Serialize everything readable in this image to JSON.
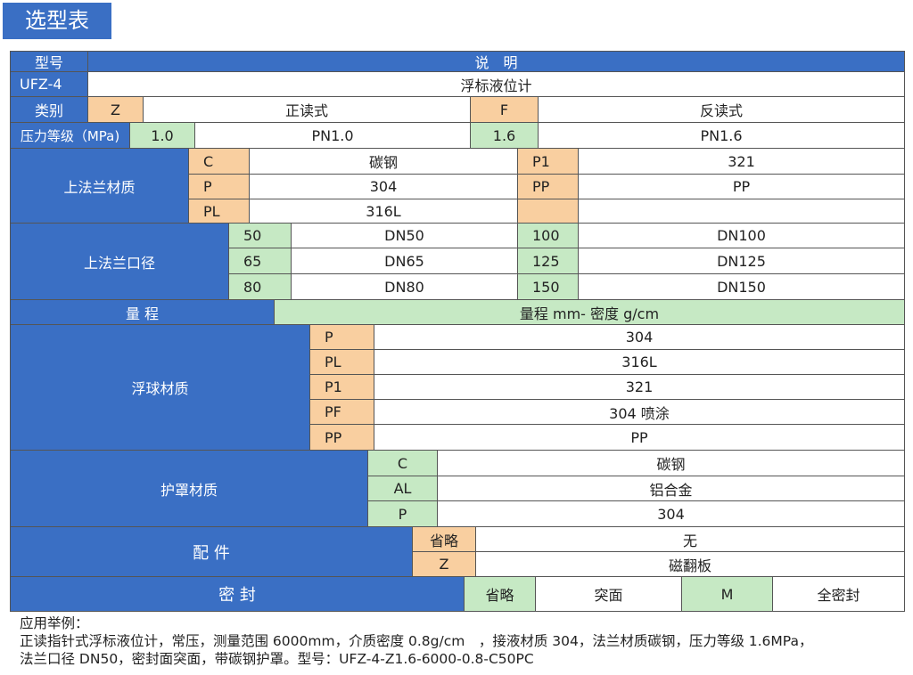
{
  "title": "选型表",
  "header": {
    "model": "型号",
    "desc": "说　明"
  },
  "model_row": {
    "code": "UFZ-4",
    "desc": "浮标液位计"
  },
  "type_row": {
    "label": "类别",
    "c1": "Z",
    "v1": "正读式",
    "c2": "F",
    "v2": "反读式"
  },
  "pressure_row": {
    "label": "压力等级（MPa)",
    "c1": "1.0",
    "v1": "PN1.0",
    "c2": "1.6",
    "v2": "PN1.6"
  },
  "flange_material": {
    "label": "上法兰材质",
    "rows": [
      {
        "c1": "C",
        "v1": "碳钢",
        "c2": "P1",
        "v2": "321"
      },
      {
        "c1": "P",
        "v1": "304",
        "c2": "PP",
        "v2": "PP"
      },
      {
        "c1": "PL",
        "v1": "316L",
        "c2": "",
        "v2": ""
      }
    ]
  },
  "flange_size": {
    "label": "上法兰口径",
    "rows": [
      {
        "c1": "50",
        "v1": "DN50",
        "c2": "100",
        "v2": "DN100"
      },
      {
        "c1": "65",
        "v1": "DN65",
        "c2": "125",
        "v2": "DN125"
      },
      {
        "c1": "80",
        "v1": "DN80",
        "c2": "150",
        "v2": "DN150"
      }
    ]
  },
  "range_row": {
    "label": "量 程",
    "value": "量程 mm- 密度 g/cm"
  },
  "float_material": {
    "label": "浮球材质",
    "rows": [
      {
        "c": "P",
        "v": "304"
      },
      {
        "c": "PL",
        "v": "316L"
      },
      {
        "c": "P1",
        "v": "321"
      },
      {
        "c": "PF",
        "v": "304 喷涂"
      },
      {
        "c": "PP",
        "v": "PP"
      }
    ]
  },
  "cover_material": {
    "label": "护罩材质",
    "rows": [
      {
        "c": "C",
        "v": "碳钢"
      },
      {
        "c": "AL",
        "v": "铝合金"
      },
      {
        "c": "P",
        "v": "304"
      }
    ]
  },
  "accessory": {
    "label": "配 件",
    "rows": [
      {
        "c": "省略",
        "v": "无"
      },
      {
        "c": "Z",
        "v": "磁翻板"
      }
    ]
  },
  "seal": {
    "label": "密 封",
    "c1": "省略",
    "v1": "突面",
    "c2": "M",
    "v2": "全密封"
  },
  "footer": {
    "line1": "应用举例：",
    "line2": "正读指针式浮标液位计，常压，测量范围 6000mm，介质密度 0.8g/cm　，接液材质 304，法兰材质碳钢，压力等级 1.6MPa，",
    "line3": "法兰口径 DN50，密封面突面，带碳钢护罩。型号：UFZ-4-Z1.6-6000-0.8-C50PC"
  }
}
